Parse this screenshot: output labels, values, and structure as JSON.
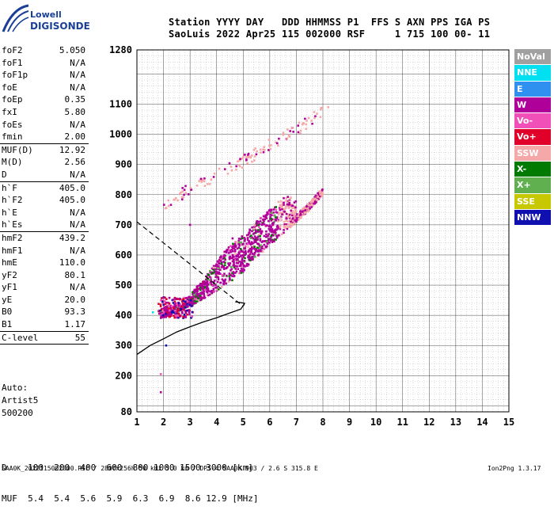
{
  "logo": {
    "line1": "Lowell",
    "line2": "DIGISONDE"
  },
  "header": {
    "row1": "Station YYYY DAY   DDD HHMMSS P1  FFS S AXN PPS IGA PS",
    "row2": "SaoLuis 2022 Apr25 115 002000 RSF     1 715 100 00- 11"
  },
  "params": [
    {
      "label": "foF2",
      "value": "5.050"
    },
    {
      "label": "foF1",
      "value": "N/A"
    },
    {
      "label": "foF1p",
      "value": "N/A"
    },
    {
      "label": "foE",
      "value": "N/A"
    },
    {
      "label": "foEp",
      "value": "0.35"
    },
    {
      "label": "fxI",
      "value": "5.80"
    },
    {
      "label": "foEs",
      "value": "N/A"
    },
    {
      "label": "fmin",
      "value": "2.00"
    },
    {
      "label": "MUF(D)",
      "value": "12.92",
      "sep": true
    },
    {
      "label": "M(D)",
      "value": "2.56"
    },
    {
      "label": "D",
      "value": "N/A"
    },
    {
      "label": "h`F",
      "value": "405.0",
      "sep": true
    },
    {
      "label": "h`F2",
      "value": "405.0"
    },
    {
      "label": "h`E",
      "value": "N/A"
    },
    {
      "label": "h`Es",
      "value": "N/A"
    },
    {
      "label": "hmF2",
      "value": "439.2",
      "sep": true
    },
    {
      "label": "hmF1",
      "value": "N/A"
    },
    {
      "label": "hmE",
      "value": "110.0"
    },
    {
      "label": "yF2",
      "value": "80.1"
    },
    {
      "label": "yF1",
      "value": "N/A"
    },
    {
      "label": "yE",
      "value": "20.0"
    },
    {
      "label": "B0",
      "value": "93.3"
    },
    {
      "label": "B1",
      "value": "1.17"
    },
    {
      "label": "C-level",
      "value": "55",
      "sep": true
    }
  ],
  "auto": [
    "Auto:",
    "Artist5",
    "500200"
  ],
  "legend": [
    {
      "label": "NoVal",
      "color": "#a0a0a0"
    },
    {
      "label": "NNE",
      "color": "#00e0f0"
    },
    {
      "label": "E",
      "color": "#3090f0"
    },
    {
      "label": "W",
      "color": "#b0009a"
    },
    {
      "label": "Vo-",
      "color": "#f050b8"
    },
    {
      "label": "Vo+",
      "color": "#e0002a"
    },
    {
      "label": "SSW",
      "color": "#f4a8a8"
    },
    {
      "label": "X-",
      "color": "#007a00"
    },
    {
      "label": "X+",
      "color": "#60b050"
    },
    {
      "label": "SSE",
      "color": "#c8c800"
    },
    {
      "label": "NNW",
      "color": "#1010b0"
    }
  ],
  "muf_table": {
    "row1": "D    100  200  400  600  800 1000 1500 3000 [km]",
    "row2": "MUF  5.4  5.4  5.6  5.9  6.3  6.9  8.6 12.9 [MHz]"
  },
  "footer": "SAA0K_2022115002000.RSF / 280fx256h 50 kHz 5.0 km / DPS-4 SAA0K 903 / 2.6 S 315.8 E",
  "version": "Ion2Png 1.3.17",
  "chart_data": {
    "type": "scatter",
    "xlim": [
      1,
      15
    ],
    "ylim": [
      80,
      1280
    ],
    "xticks": [
      1,
      2,
      3,
      4,
      5,
      6,
      7,
      8,
      9,
      10,
      11,
      12,
      13,
      14,
      15
    ],
    "yticks": [
      80,
      200,
      300,
      400,
      500,
      600,
      700,
      800,
      900,
      1000,
      1100,
      1280
    ],
    "grid": true,
    "echo_traces": [
      {
        "name": "O-trace F2",
        "color": "W",
        "points": [
          [
            1.9,
            400
          ],
          [
            2.2,
            410
          ],
          [
            2.6,
            425
          ],
          [
            3.0,
            440
          ],
          [
            3.5,
            465
          ],
          [
            4.0,
            490
          ],
          [
            4.5,
            520
          ],
          [
            5.0,
            555
          ],
          [
            5.5,
            600
          ],
          [
            6.0,
            640
          ],
          [
            6.5,
            680
          ],
          [
            7.0,
            720
          ],
          [
            7.5,
            760
          ],
          [
            8.0,
            810
          ]
        ]
      },
      {
        "name": "second hop",
        "color": "SSW",
        "points": [
          [
            2.0,
            750
          ],
          [
            3.0,
            820
          ],
          [
            4.0,
            860
          ],
          [
            5.0,
            905
          ],
          [
            6.0,
            960
          ],
          [
            7.0,
            1010
          ],
          [
            8.0,
            1070
          ]
        ]
      }
    ],
    "profile_solid": [
      [
        1.0,
        270
      ],
      [
        1.5,
        300
      ],
      [
        2.0,
        322
      ],
      [
        2.5,
        345
      ],
      [
        3.0,
        362
      ],
      [
        3.5,
        378
      ],
      [
        4.0,
        392
      ],
      [
        4.5,
        408
      ],
      [
        4.9,
        420
      ],
      [
        5.03,
        435
      ],
      [
        5.05,
        440
      ],
      [
        4.7,
        445
      ]
    ],
    "profile_dashed": [
      [
        1.0,
        710
      ],
      [
        1.5,
        675
      ],
      [
        2.0,
        640
      ],
      [
        2.5,
        605
      ],
      [
        3.0,
        570
      ],
      [
        3.5,
        535
      ],
      [
        4.0,
        500
      ],
      [
        4.5,
        465
      ],
      [
        5.0,
        430
      ]
    ]
  }
}
